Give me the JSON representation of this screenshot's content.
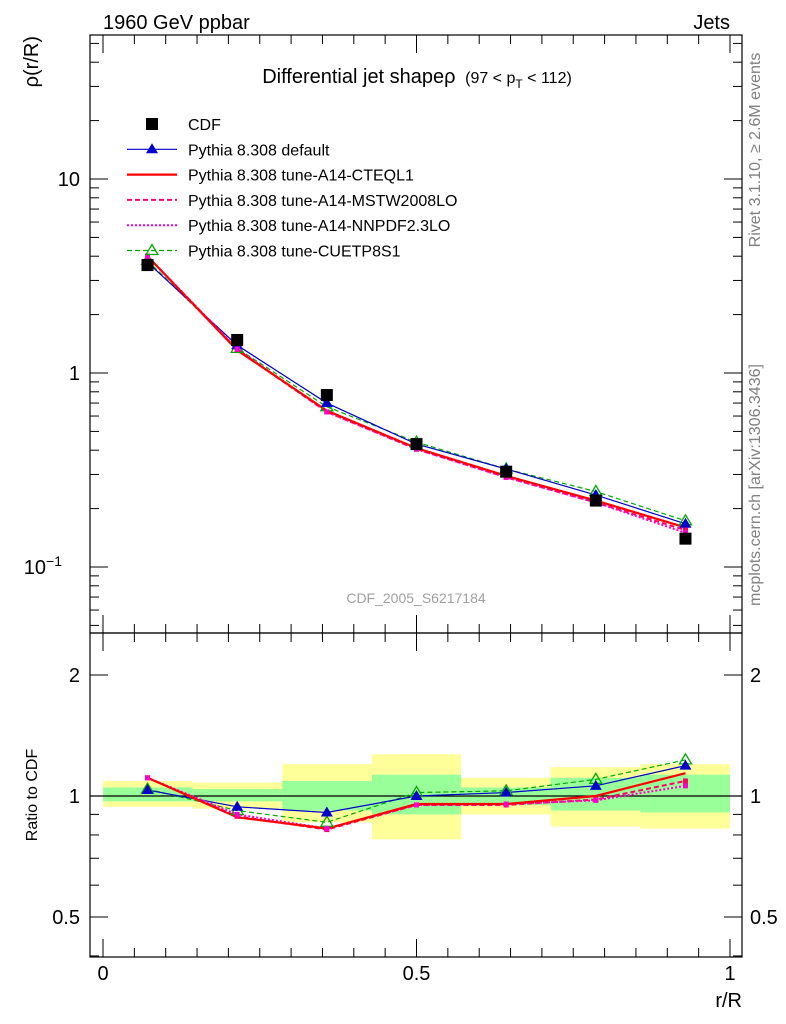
{
  "header": {
    "left": "1960 GeV ppbar",
    "right": "Jets"
  },
  "side": {
    "rivet": "Rivet 3.1.10, ≥ 2.6M events",
    "mcplots": "mcplots.cern.ch [arXiv:1306.3436]"
  },
  "chart_data": {
    "type": "line",
    "title": "Differential jet shapeρ",
    "title_range": "(97 < p",
    "title_sub": "T",
    "title_range_end": " < 112)",
    "watermark": "CDF_2005_S6217184",
    "main": {
      "ylabel": "ρ(r/R)",
      "yscale": "log",
      "ylim": [
        0.05,
        50
      ],
      "ytick_labels": [
        {
          "value": 10,
          "label": "10"
        },
        {
          "value": 1,
          "label": "1"
        },
        {
          "value": 0.1,
          "label": "10",
          "sup": "−1"
        }
      ]
    },
    "ratio": {
      "ylabel": "Ratio to CDF",
      "ylim": [
        0.4,
        2.4
      ],
      "yticks": [
        2,
        1,
        0.5
      ],
      "ytick_labels": [
        "2",
        "1",
        "0.5"
      ],
      "bands_yellow": [
        [
          0.0,
          0.143,
          0.94,
          1.09
        ],
        [
          0.143,
          0.286,
          0.93,
          1.08
        ],
        [
          0.286,
          0.429,
          0.86,
          1.2
        ],
        [
          0.429,
          0.571,
          0.78,
          1.27
        ],
        [
          0.571,
          0.714,
          0.9,
          1.11
        ],
        [
          0.714,
          0.857,
          0.84,
          1.18
        ],
        [
          0.857,
          1.0,
          0.83,
          1.2
        ]
      ],
      "bands_green": [
        [
          0.0,
          0.143,
          0.97,
          1.05
        ],
        [
          0.143,
          0.286,
          0.97,
          1.04
        ],
        [
          0.286,
          0.429,
          0.92,
          1.09
        ],
        [
          0.429,
          0.571,
          0.9,
          1.13
        ],
        [
          0.571,
          0.714,
          0.95,
          1.05
        ],
        [
          0.714,
          0.857,
          0.92,
          1.11
        ],
        [
          0.857,
          1.0,
          0.91,
          1.13
        ]
      ]
    },
    "xlabel": "r/R",
    "xlim": [
      0,
      1
    ],
    "xticks": [
      0,
      0.5,
      1
    ],
    "xtick_labels": [
      "0",
      "0.5",
      "1"
    ],
    "x": [
      0.071,
      0.214,
      0.357,
      0.5,
      0.643,
      0.786,
      0.929
    ],
    "data": {
      "name": "CDF",
      "values": [
        3.6,
        1.48,
        0.77,
        0.43,
        0.31,
        0.22,
        0.14
      ]
    },
    "series": [
      {
        "name": "Pythia 8.308 default",
        "color": "#0000cc",
        "dash": "",
        "width": 1.2,
        "marker": "triangle",
        "values": [
          3.72,
          1.39,
          0.7,
          0.43,
          0.32,
          0.235,
          0.167
        ],
        "ratio": [
          1.035,
          0.94,
          0.91,
          1.0,
          1.02,
          1.06,
          1.19
        ]
      },
      {
        "name": "Pythia 8.308 tune-A14-CTEQL1",
        "color": "#ff0000",
        "dash": "",
        "width": 2.2,
        "marker": "none",
        "values": [
          4.0,
          1.31,
          0.64,
          0.41,
          0.295,
          0.22,
          0.16
        ],
        "ratio": [
          1.11,
          0.885,
          0.83,
          0.955,
          0.955,
          1.0,
          1.14
        ]
      },
      {
        "name": "Pythia 8.308 tune-A14-MSTW2008LO",
        "color": "#ff0066",
        "dash": "5,3",
        "width": 2.0,
        "marker": "smallsquare",
        "values": [
          4.0,
          1.32,
          0.63,
          0.405,
          0.29,
          0.215,
          0.155
        ],
        "ratio": [
          1.11,
          0.89,
          0.825,
          0.95,
          0.95,
          0.98,
          1.09
        ]
      },
      {
        "name": "Pythia 8.308 tune-A14-NNPDF2.3LO",
        "color": "#ff00cc",
        "dash": "2,2",
        "width": 2.0,
        "marker": "smallsquare",
        "values": [
          4.0,
          1.33,
          0.63,
          0.405,
          0.29,
          0.215,
          0.15
        ],
        "ratio": [
          1.11,
          0.9,
          0.83,
          0.95,
          0.955,
          0.975,
          1.06
        ]
      },
      {
        "name": "Pythia 8.308 tune-CUETP8S1",
        "color": "#00aa00",
        "dash": "5,3",
        "width": 1.2,
        "marker": "opentriangle",
        "values": [
          3.8,
          1.34,
          0.67,
          0.44,
          0.32,
          0.245,
          0.173
        ],
        "ratio": [
          1.04,
          0.92,
          0.86,
          1.02,
          1.03,
          1.1,
          1.23
        ]
      }
    ]
  }
}
